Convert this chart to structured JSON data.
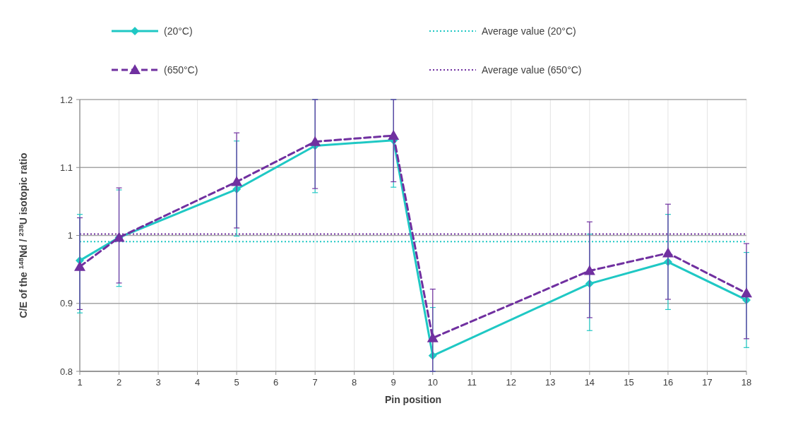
{
  "chart_data": {
    "type": "line",
    "xlabel": "Pin position",
    "ylabel": "C/E of the $^{148}$Nd / $^{238}$U isotopic ratio",
    "x": [
      1,
      2,
      5,
      7,
      9,
      10,
      14,
      16,
      18
    ],
    "series": [
      {
        "name": "(20°C)",
        "color": "#1fc8c4",
        "marker": "diamond",
        "line_style": "solid",
        "values": [
          0.963,
          0.997,
          1.068,
          1.132,
          1.14,
          0.823,
          0.929,
          0.961,
          0.905
        ],
        "errors": [
          [
            0.886,
            1.031
          ],
          [
            0.925,
            1.067
          ],
          [
            0.999,
            1.139
          ],
          [
            1.063,
            1.2
          ],
          [
            1.071,
            1.2
          ],
          [
            0.8,
            0.894
          ],
          [
            0.86,
            1.002
          ],
          [
            0.891,
            1.031
          ],
          [
            0.835,
            0.975
          ]
        ]
      },
      {
        "name": "(650°C)",
        "color": "#7030a0",
        "marker": "triangle",
        "line_style": "dashed",
        "values": [
          0.954,
          0.997,
          1.079,
          1.138,
          1.147,
          0.849,
          0.948,
          0.974,
          0.915
        ],
        "errors": [
          [
            0.891,
            1.026
          ],
          [
            0.93,
            1.07
          ],
          [
            1.011,
            1.151
          ],
          [
            1.069,
            1.2
          ],
          [
            1.079,
            1.2
          ],
          [
            0.8,
            0.921
          ],
          [
            0.879,
            1.02
          ],
          [
            0.906,
            1.046
          ],
          [
            0.848,
            0.988
          ]
        ]
      }
    ],
    "ref_lines": [
      {
        "axis": "y",
        "value": 0.991,
        "label": "Average value (20°C)",
        "color": "#1fc8c4",
        "line_style": "dotted"
      },
      {
        "axis": "y",
        "value": 1.002,
        "label": "Average value (650°C)",
        "color": "#7030a0",
        "line_style": "dotted"
      }
    ],
    "xlim": [
      1,
      18
    ],
    "xticks": [
      1,
      2,
      3,
      4,
      5,
      6,
      7,
      8,
      9,
      10,
      11,
      12,
      13,
      14,
      15,
      16,
      17,
      18
    ],
    "ylim": [
      0.8,
      1.2
    ],
    "yticks": [
      0.8,
      0.9,
      1,
      1.1,
      1.2
    ],
    "grid": true,
    "legend": "top"
  }
}
